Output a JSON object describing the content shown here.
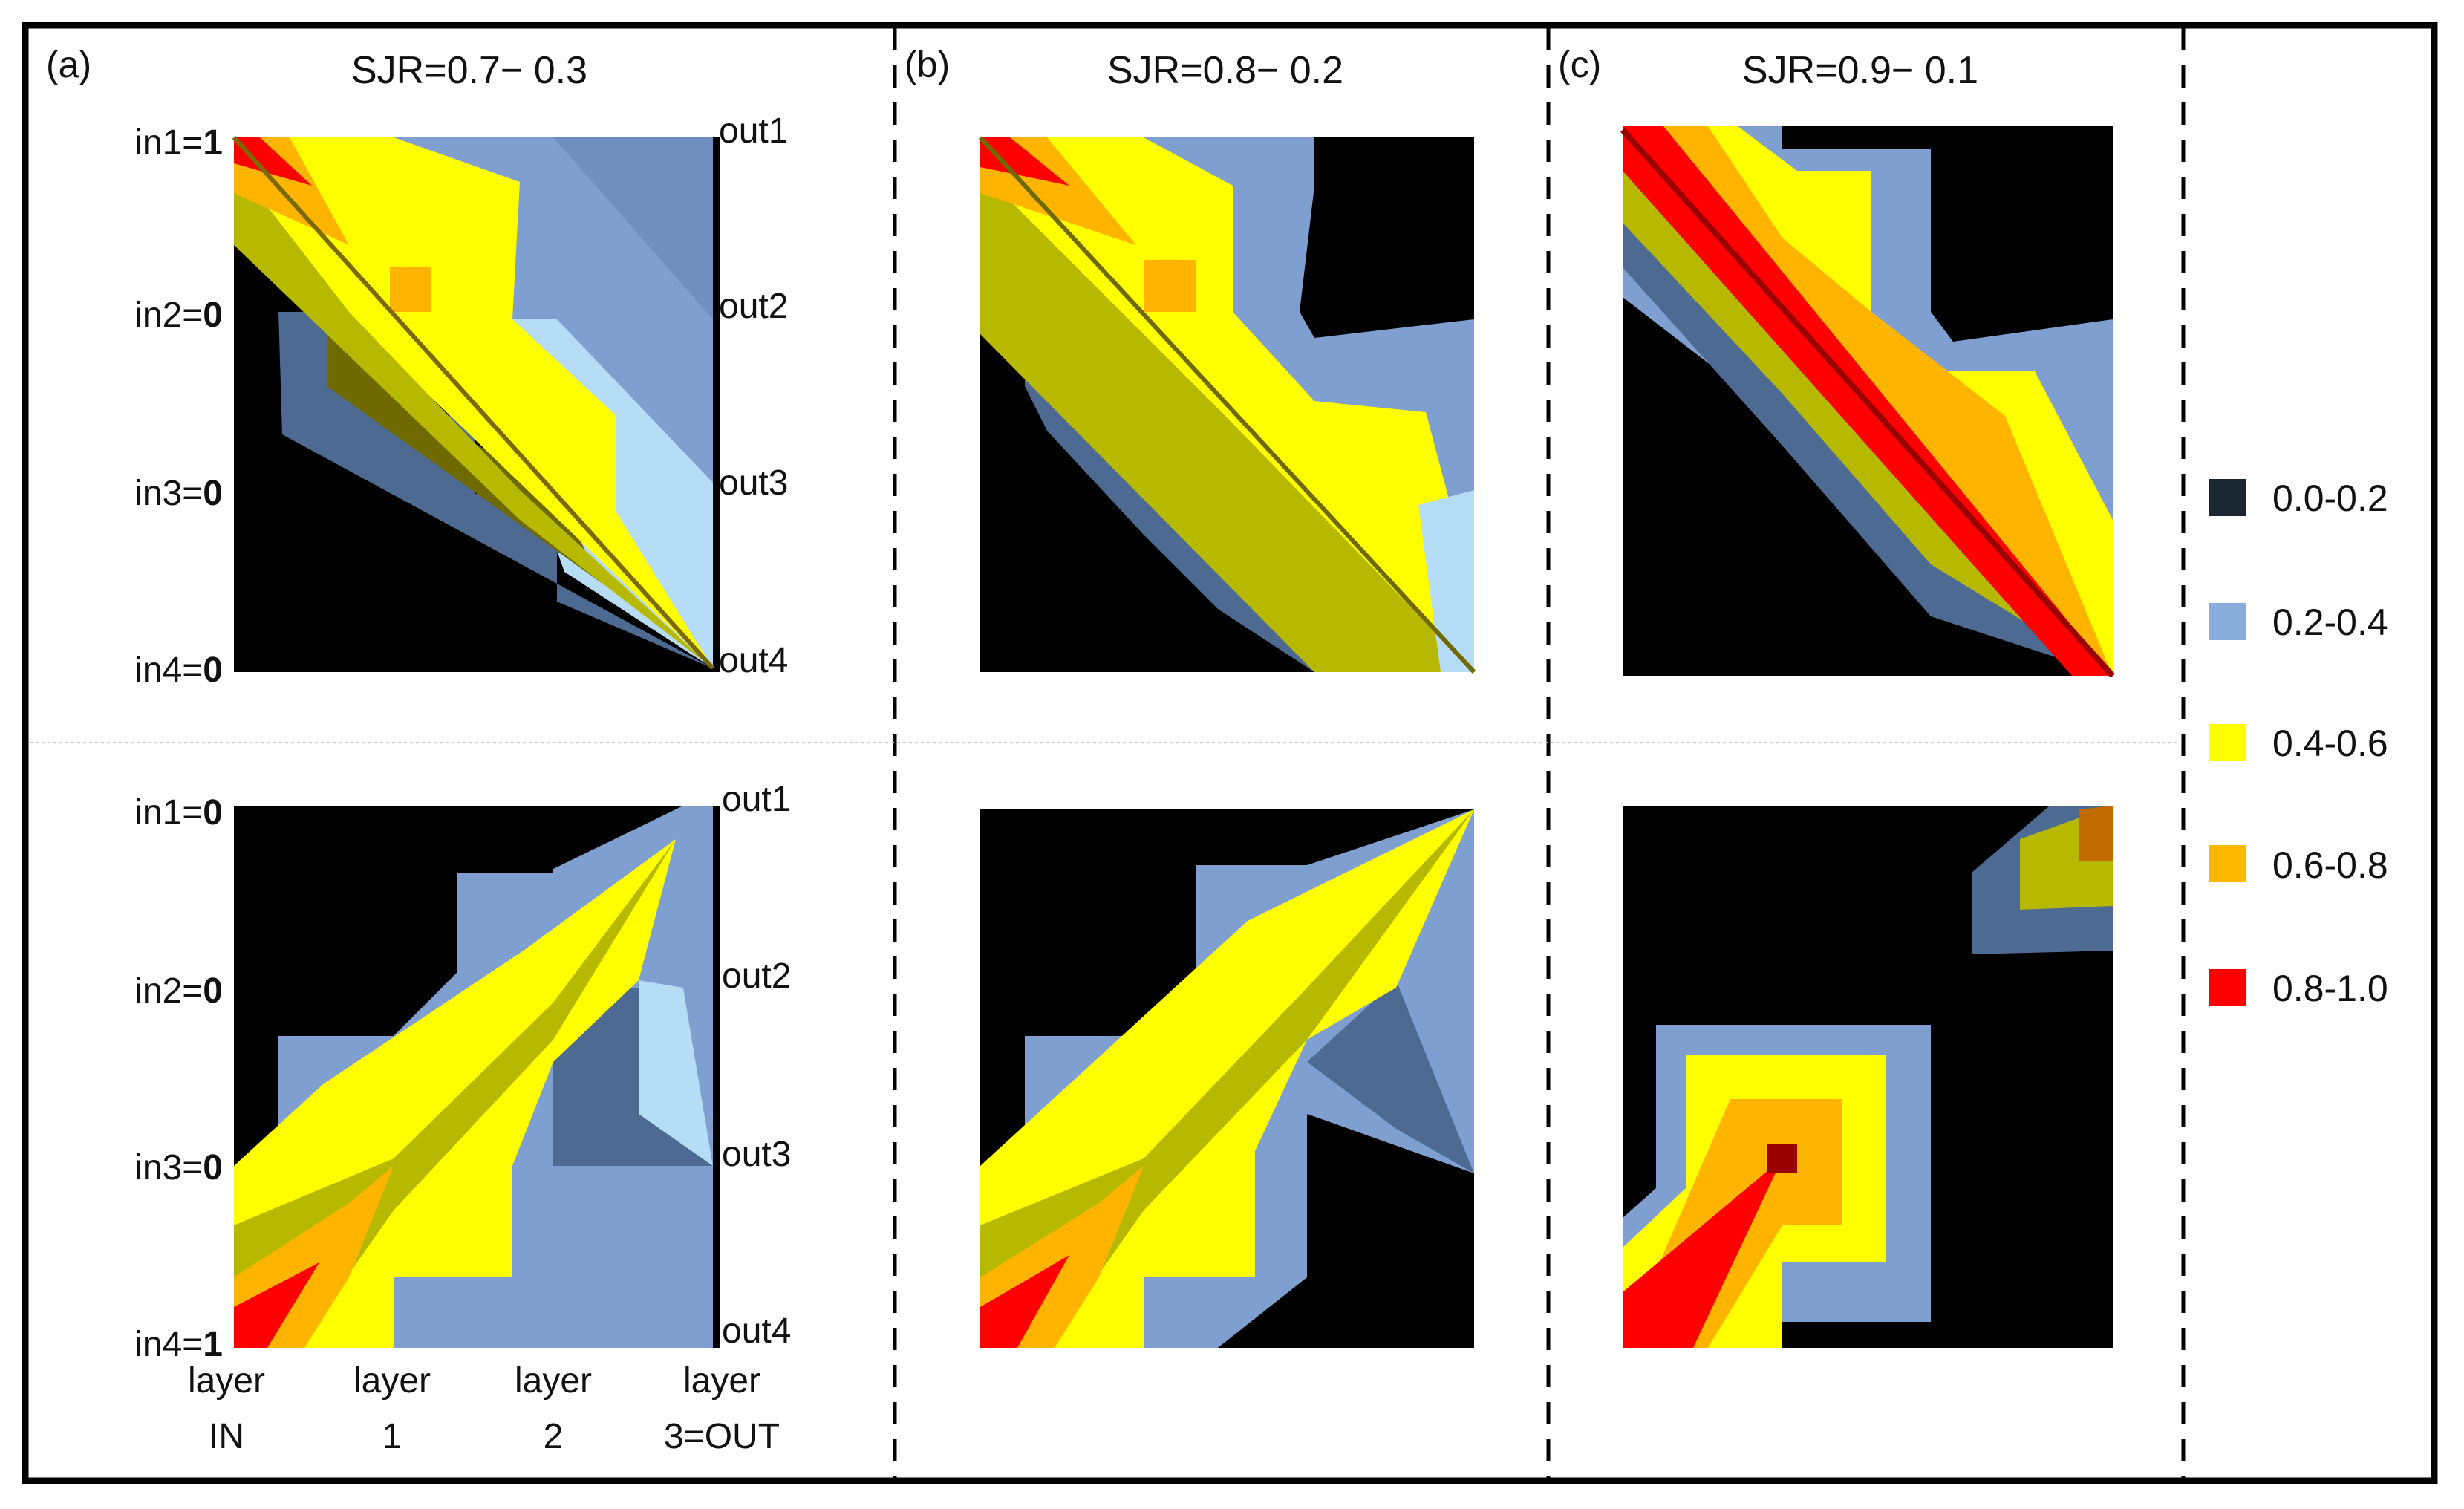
{
  "panels": [
    {
      "letter": "(a)",
      "title": "SJR=0.7− 0.3"
    },
    {
      "letter": "(b)",
      "title": "SJR=0.8− 0.2"
    },
    {
      "letter": "(c)",
      "title": "SJR=0.9− 0.1"
    }
  ],
  "rows": [
    {
      "name": "top-row",
      "inputs": [
        {
          "label": "in1=",
          "value": "1"
        },
        {
          "label": "in2=",
          "value": "0"
        },
        {
          "label": "in3=",
          "value": "0"
        },
        {
          "label": "in4=",
          "value": "0"
        }
      ]
    },
    {
      "name": "bottom-row",
      "inputs": [
        {
          "label": "in1=",
          "value": "0"
        },
        {
          "label": "in2=",
          "value": "0"
        },
        {
          "label": "in3=",
          "value": "0"
        },
        {
          "label": "in4=",
          "value": "1"
        }
      ]
    }
  ],
  "outputs": [
    "out1",
    "out2",
    "out3",
    "out4"
  ],
  "layers": [
    {
      "line1": "layer",
      "line2": "IN"
    },
    {
      "line1": "layer",
      "line2": "1"
    },
    {
      "line1": "layer",
      "line2": "2"
    },
    {
      "line1": "layer",
      "line2": "3=OUT"
    }
  ],
  "legend": [
    {
      "range": "0.0-0.2",
      "color": "#1b2733"
    },
    {
      "range": "0.2-0.4",
      "color": "#89acdc"
    },
    {
      "range": "0.4-0.6",
      "color": "#ffff00"
    },
    {
      "range": "0.6-0.8",
      "color": "#ffb800"
    },
    {
      "range": "0.8-1.0",
      "color": "#ff0000"
    }
  ],
  "colors": {
    "background": "#000000",
    "blue": "#7f9fd0",
    "light_blue": "#b7dcf6",
    "dark_blue": "#4d6a93",
    "yellow": "#ffff00",
    "olive": "#b7b800",
    "dark_olive": "#6f6a00",
    "orange": "#ffb400",
    "dark_orange": "#c06a00",
    "red": "#ff0000",
    "dark_red": "#9b0000"
  }
}
